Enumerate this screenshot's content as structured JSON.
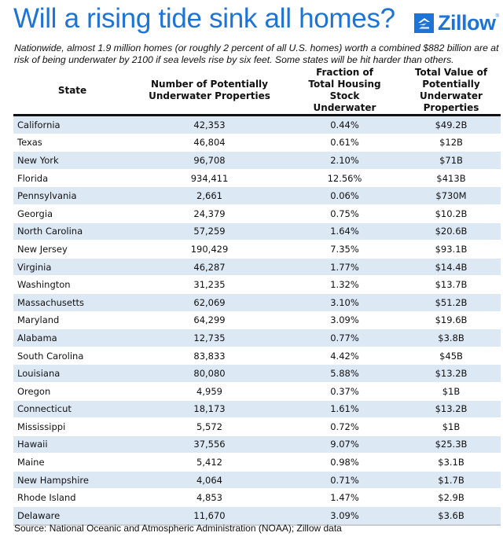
{
  "header": {
    "title": "Will a rising tide sink all homes?",
    "subtitle": "Nationwide, almost 1.9 million homes (or roughly 2 percent of all U.S. homes) worth a combined $882 billion are at risk of being underwater by 2100 if sea levels rise by six feet. Some states will be hit harder than others.",
    "logo_text": "Zillow",
    "logo_icon": "zillow-house-icon",
    "brand_color": "#1e74d6"
  },
  "table": {
    "columns": [
      "State",
      "Number of Potentially Underwater Properties",
      "Fraction of Total Housing Stock Underwater",
      "Total Value of Potentially Underwater Properties"
    ],
    "rows": [
      [
        "California",
        "42,353",
        "0.44%",
        "$49.2B"
      ],
      [
        "Texas",
        "46,804",
        "0.61%",
        "$12B"
      ],
      [
        "New York",
        "96,708",
        "2.10%",
        "$71B"
      ],
      [
        "Florida",
        "934,411",
        "12.56%",
        "$413B"
      ],
      [
        "Pennsylvania",
        "2,661",
        "0.06%",
        "$730M"
      ],
      [
        "Georgia",
        "24,379",
        "0.75%",
        "$10.2B"
      ],
      [
        "North Carolina",
        "57,259",
        "1.64%",
        "$20.6B"
      ],
      [
        "New Jersey",
        "190,429",
        "7.35%",
        "$93.1B"
      ],
      [
        "Virginia",
        "46,287",
        "1.77%",
        "$14.4B"
      ],
      [
        "Washington",
        "31,235",
        "1.32%",
        "$13.7B"
      ],
      [
        "Massachusetts",
        "62,069",
        "3.10%",
        "$51.2B"
      ],
      [
        "Maryland",
        "64,299",
        "3.09%",
        "$19.6B"
      ],
      [
        "Alabama",
        "12,735",
        "0.77%",
        "$3.8B"
      ],
      [
        "South Carolina",
        "83,833",
        "4.42%",
        "$45B"
      ],
      [
        "Louisiana",
        "80,080",
        "5.88%",
        "$13.2B"
      ],
      [
        "Oregon",
        "4,959",
        "0.37%",
        "$1B"
      ],
      [
        "Connecticut",
        "18,173",
        "1.61%",
        "$13.2B"
      ],
      [
        "Mississippi",
        "5,572",
        "0.72%",
        "$1B"
      ],
      [
        "Hawaii",
        "37,556",
        "9.07%",
        "$25.3B"
      ],
      [
        "Maine",
        "5,412",
        "0.98%",
        "$3.1B"
      ],
      [
        "New Hampshire",
        "4,064",
        "0.71%",
        "$1.7B"
      ],
      [
        "Rhode Island",
        "4,853",
        "1.47%",
        "$2.9B"
      ],
      [
        "Delaware",
        "11,670",
        "3.09%",
        "$3.6B"
      ]
    ],
    "stripe_color": "#dde8f5"
  },
  "footer": {
    "source": "Source: National Oceanic and Atmospheric Administration (NOAA); Zillow data"
  }
}
